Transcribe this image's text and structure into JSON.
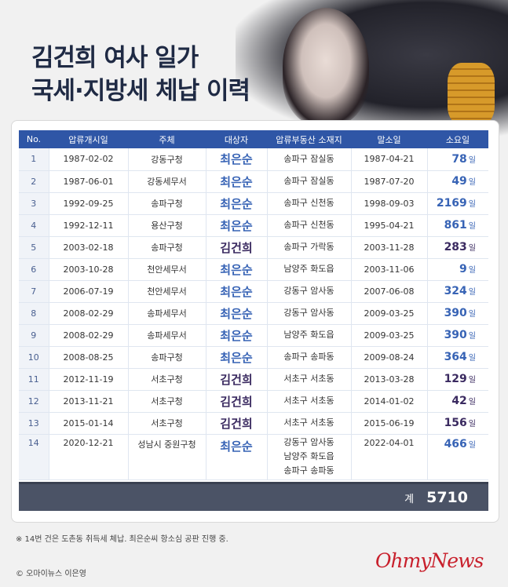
{
  "title": {
    "line1": "김건희 여사 일가",
    "line2": "국세·지방세 체납 이력"
  },
  "table": {
    "headers": [
      "No.",
      "압류개시일",
      "주체",
      "대상자",
      "압류부동산 소재지",
      "말소일",
      "소요일"
    ],
    "unit": "일",
    "rows": [
      {
        "no": "1",
        "start": "1987-02-02",
        "agency": "강동구청",
        "person": "최은순",
        "location": "송파구 잠실동",
        "end": "1987-04-21",
        "days": "78"
      },
      {
        "no": "2",
        "start": "1987-06-01",
        "agency": "강동세무서",
        "person": "최은순",
        "location": "송파구 잠실동",
        "end": "1987-07-20",
        "days": "49"
      },
      {
        "no": "3",
        "start": "1992-09-25",
        "agency": "송파구청",
        "person": "최은순",
        "location": "송파구 신천동",
        "end": "1998-09-03",
        "days": "2169"
      },
      {
        "no": "4",
        "start": "1992-12-11",
        "agency": "용산구청",
        "person": "최은순",
        "location": "송파구 신천동",
        "end": "1995-04-21",
        "days": "861"
      },
      {
        "no": "5",
        "start": "2003-02-18",
        "agency": "송파구청",
        "person": "김건희",
        "location": "송파구 가락동",
        "end": "2003-11-28",
        "days": "283"
      },
      {
        "no": "6",
        "start": "2003-10-28",
        "agency": "천안세무서",
        "person": "최은순",
        "location": "남양주 화도읍",
        "end": "2003-11-06",
        "days": "9"
      },
      {
        "no": "7",
        "start": "2006-07-19",
        "agency": "천안세무서",
        "person": "최은순",
        "location": "강동구 암사동",
        "end": "2007-06-08",
        "days": "324"
      },
      {
        "no": "8",
        "start": "2008-02-29",
        "agency": "송파세무서",
        "person": "최은순",
        "location": "강동구 암사동",
        "end": "2009-03-25",
        "days": "390"
      },
      {
        "no": "9",
        "start": "2008-02-29",
        "agency": "송파세무서",
        "person": "최은순",
        "location": "남양주 화도읍",
        "end": "2009-03-25",
        "days": "390"
      },
      {
        "no": "10",
        "start": "2008-08-25",
        "agency": "송파구청",
        "person": "최은순",
        "location": "송파구 송파동",
        "end": "2009-08-24",
        "days": "364"
      },
      {
        "no": "11",
        "start": "2012-11-19",
        "agency": "서초구청",
        "person": "김건희",
        "location": "서초구 서초동",
        "end": "2013-03-28",
        "days": "129"
      },
      {
        "no": "12",
        "start": "2013-11-21",
        "agency": "서초구청",
        "person": "김건희",
        "location": "서초구 서초동",
        "end": "2014-01-02",
        "days": "42"
      },
      {
        "no": "13",
        "start": "2015-01-14",
        "agency": "서초구청",
        "person": "김건희",
        "location": "서초구 서초동",
        "end": "2015-06-19",
        "days": "156"
      },
      {
        "no": "14",
        "start": "2020-12-21",
        "agency": "성남시 중원구청",
        "person": "최은순",
        "location": "강동구 암사동\n남양주 화도읍\n송파구 송파동",
        "end": "2022-04-01",
        "days": "466"
      }
    ],
    "total_label": "계",
    "total_value": "5710"
  },
  "note": "※ 14번 건은 도촌동 취득세 체납. 최은순씨 항소심 공판 진행 중.",
  "copyright": "© 오마이뉴스 이은영",
  "logo": "OhmyNews",
  "colors": {
    "header": "#2f56a6",
    "choi": "#3763b5",
    "kim": "#3a2a60",
    "total_bar": "#4b5366",
    "logo": "#c8202c"
  }
}
